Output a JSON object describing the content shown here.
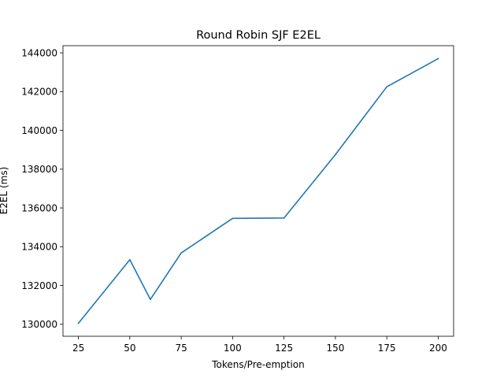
{
  "chart_data": {
    "type": "line",
    "title": "Round Robin SJF E2EL",
    "xlabel": "Tokens/Pre-emption",
    "ylabel": "E2EL (ms)",
    "x": [
      25,
      50,
      60,
      75,
      100,
      125,
      150,
      175,
      200
    ],
    "series": [
      {
        "values": [
          130050,
          133330,
          131280,
          133680,
          135460,
          135480,
          138750,
          142250,
          143700
        ],
        "color": "#1f77b4"
      }
    ],
    "xlim": [
      17.5,
      207.5
    ],
    "ylim": [
      129380,
      144370
    ],
    "xticks": [
      25,
      50,
      75,
      100,
      125,
      150,
      175,
      200
    ],
    "yticks": [
      130000,
      132000,
      134000,
      136000,
      138000,
      140000,
      142000,
      144000
    ],
    "grid": false
  }
}
